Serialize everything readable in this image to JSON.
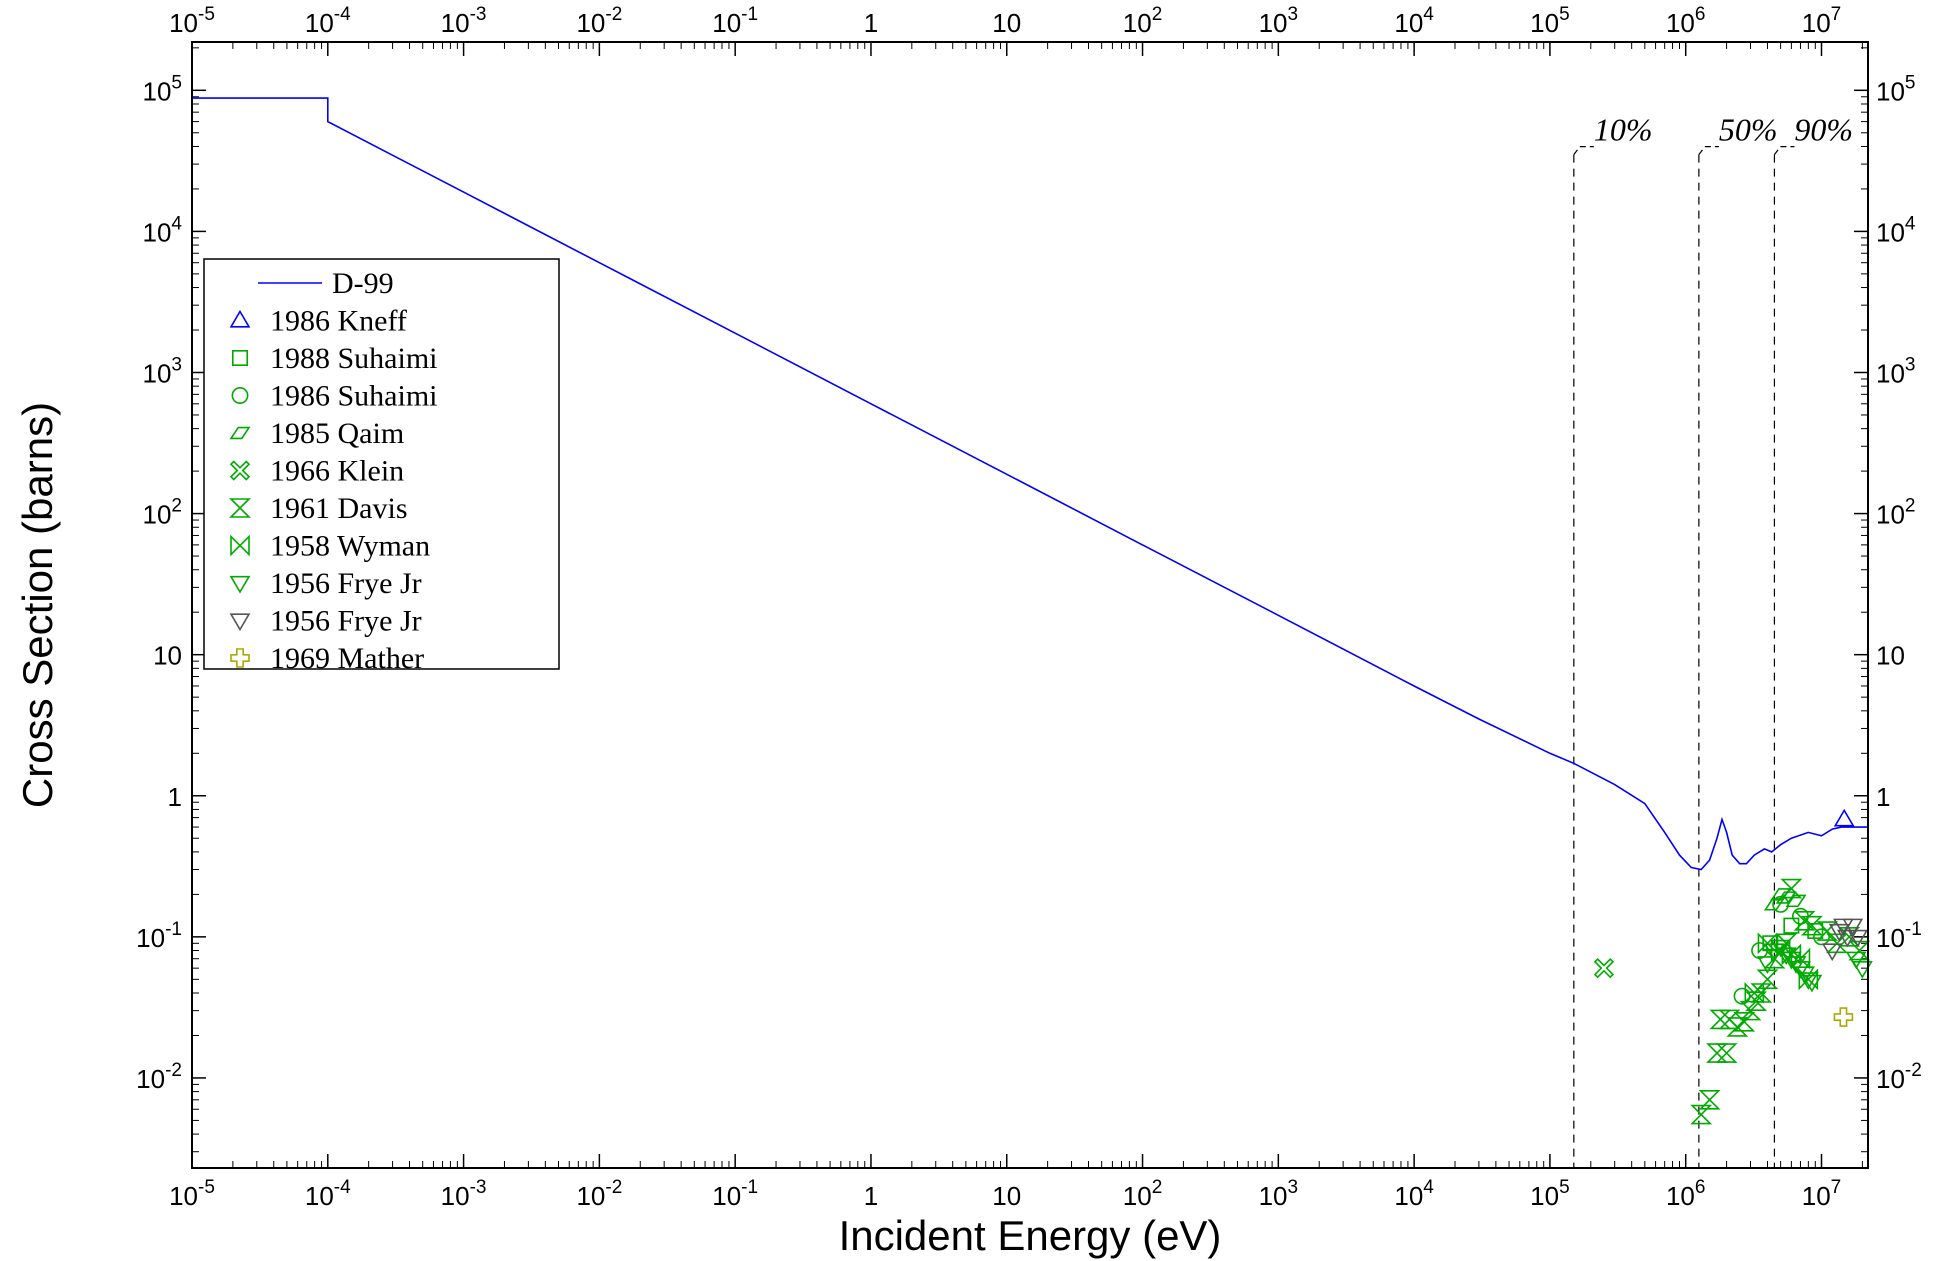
{
  "chart_data": {
    "type": "scatter",
    "title": "",
    "xlabel": "Incident Energy  (eV)",
    "ylabel": "Cross Section  (barns)",
    "xscale": "log",
    "yscale": "log",
    "xlim": [
      1e-05,
      22000000.0
    ],
    "ylim": [
      0.0023,
      220000.0
    ],
    "grid": false,
    "legend_position": "top-left",
    "x_ticks": [
      {
        "value": 1e-05,
        "base": "10",
        "exp": "-5"
      },
      {
        "value": 0.0001,
        "base": "10",
        "exp": "-4"
      },
      {
        "value": 0.001,
        "base": "10",
        "exp": "-3"
      },
      {
        "value": 0.01,
        "base": "10",
        "exp": "-2"
      },
      {
        "value": 0.1,
        "base": "10",
        "exp": "-1"
      },
      {
        "value": 1,
        "base": "1",
        "exp": ""
      },
      {
        "value": 10,
        "base": "10",
        "exp": ""
      },
      {
        "value": 100,
        "base": "10",
        "exp": "2"
      },
      {
        "value": 1000,
        "base": "10",
        "exp": "3"
      },
      {
        "value": 10000,
        "base": "10",
        "exp": "4"
      },
      {
        "value": 100000,
        "base": "10",
        "exp": "5"
      },
      {
        "value": 1000000,
        "base": "10",
        "exp": "6"
      },
      {
        "value": 10000000,
        "base": "10",
        "exp": "7"
      }
    ],
    "y_ticks": [
      {
        "value": 0.01,
        "base": "10",
        "exp": "-2"
      },
      {
        "value": 0.1,
        "base": "10",
        "exp": "-1"
      },
      {
        "value": 1,
        "base": "1",
        "exp": ""
      },
      {
        "value": 10,
        "base": "10",
        "exp": ""
      },
      {
        "value": 100,
        "base": "10",
        "exp": "2"
      },
      {
        "value": 1000,
        "base": "10",
        "exp": "3"
      },
      {
        "value": 10000,
        "base": "10",
        "exp": "4"
      },
      {
        "value": 100000,
        "base": "10",
        "exp": "5"
      }
    ],
    "percentile_markers": [
      {
        "label": "10%",
        "x": 150000.0
      },
      {
        "label": "50%",
        "x": 1250000.0
      },
      {
        "label": "90%",
        "x": 4500000.0
      }
    ],
    "series": [
      {
        "name": "D-99",
        "kind": "line",
        "color": "#0000ff",
        "points": [
          [
            1e-05,
            88000
          ],
          [
            0.0001,
            88000
          ],
          [
            0.0001,
            60000
          ],
          [
            0.001,
            19000
          ],
          [
            0.01,
            6000
          ],
          [
            0.1,
            1900
          ],
          [
            1,
            600
          ],
          [
            10,
            190
          ],
          [
            100,
            60
          ],
          [
            1000,
            19
          ],
          [
            10000,
            6
          ],
          [
            30000,
            3.5
          ],
          [
            100000,
            2
          ],
          [
            150000,
            1.7
          ],
          [
            300000,
            1.2
          ],
          [
            500000,
            0.88
          ],
          [
            700000,
            0.55
          ],
          [
            900000,
            0.38
          ],
          [
            1100000,
            0.31
          ],
          [
            1300000,
            0.3
          ],
          [
            1500000,
            0.35
          ],
          [
            1700000,
            0.5
          ],
          [
            1850000,
            0.68
          ],
          [
            2000000,
            0.55
          ],
          [
            2200000,
            0.38
          ],
          [
            2500000,
            0.33
          ],
          [
            2800000,
            0.33
          ],
          [
            3200000,
            0.38
          ],
          [
            3800000,
            0.42
          ],
          [
            4300000,
            0.4
          ],
          [
            5000000,
            0.45
          ],
          [
            6000000,
            0.5
          ],
          [
            8000000,
            0.55
          ],
          [
            10000000,
            0.52
          ],
          [
            12000000,
            0.58
          ],
          [
            14000000,
            0.6
          ],
          [
            22000000,
            0.6
          ]
        ]
      },
      {
        "name": "1986 Kneff",
        "kind": "marker",
        "marker": "triangle-up",
        "color": "#0000ff",
        "points": [
          [
            14700000,
            0.68
          ]
        ]
      },
      {
        "name": "1988 Suhaimi",
        "kind": "marker",
        "marker": "square",
        "color": "#00aa00",
        "points": [
          [
            4200000,
            0.09
          ],
          [
            6000000,
            0.12
          ],
          [
            9000000,
            0.11
          ]
        ]
      },
      {
        "name": "1986 Suhaimi",
        "kind": "marker",
        "marker": "circle",
        "color": "#00aa00",
        "points": [
          [
            2600000,
            0.038
          ],
          [
            3500000,
            0.08
          ],
          [
            5000000,
            0.17
          ],
          [
            7000000,
            0.14
          ],
          [
            10000000,
            0.1
          ]
        ]
      },
      {
        "name": "1985 Qaim",
        "kind": "marker",
        "marker": "parallelogram",
        "color": "#00aa00",
        "points": [
          [
            4500000,
            0.17
          ],
          [
            5000000,
            0.2
          ],
          [
            5500000,
            0.19
          ],
          [
            6500000,
            0.18
          ]
        ]
      },
      {
        "name": "1966 Klein",
        "kind": "marker",
        "marker": "cross-x",
        "color": "#00aa00",
        "points": [
          [
            250000,
            0.06
          ]
        ]
      },
      {
        "name": "1961 Davis",
        "kind": "marker",
        "marker": "bowtie-v",
        "color": "#00aa00",
        "points": [
          [
            1300000,
            0.0055
          ],
          [
            1500000,
            0.007
          ],
          [
            1700000,
            0.015
          ],
          [
            2000000,
            0.015
          ],
          [
            1800000,
            0.026
          ],
          [
            2100000,
            0.026
          ],
          [
            2400000,
            0.023
          ],
          [
            2700000,
            0.025
          ],
          [
            3000000,
            0.03
          ],
          [
            3300000,
            0.035
          ],
          [
            3600000,
            0.04
          ],
          [
            4000000,
            0.05
          ],
          [
            4500000,
            0.07
          ],
          [
            5500000,
            0.09
          ],
          [
            6000000,
            0.22
          ],
          [
            7500000,
            0.13
          ],
          [
            8500000,
            0.12
          ],
          [
            11000000,
            0.11
          ],
          [
            13000000,
            0.09
          ],
          [
            16000000,
            0.1
          ],
          [
            19000000,
            0.08
          ]
        ]
      },
      {
        "name": "1958 Wyman",
        "kind": "marker",
        "marker": "bowtie-h",
        "color": "#00aa00",
        "points": [
          [
            3200000,
            0.04
          ],
          [
            4000000,
            0.09
          ],
          [
            5000000,
            0.08
          ],
          [
            6000000,
            0.075
          ],
          [
            7000000,
            0.07
          ],
          [
            8000000,
            0.05
          ]
        ]
      },
      {
        "name": "1956 Frye Jr",
        "kind": "marker",
        "marker": "triangle-down",
        "color": "#00aa00",
        "points": [
          [
            4000000,
            0.065
          ],
          [
            4500000,
            0.08
          ],
          [
            5000000,
            0.085
          ],
          [
            5500000,
            0.075
          ],
          [
            6000000,
            0.07
          ],
          [
            6500000,
            0.065
          ],
          [
            7000000,
            0.06
          ],
          [
            7500000,
            0.055
          ],
          [
            8000000,
            0.05
          ],
          [
            8500000,
            0.048
          ],
          [
            18000000,
            0.07
          ],
          [
            20000000,
            0.06
          ]
        ]
      },
      {
        "name": "1956 Frye Jr",
        "kind": "marker",
        "marker": "triangle-down",
        "color": "#555555",
        "points": [
          [
            12000000,
            0.08
          ],
          [
            13500000,
            0.11
          ],
          [
            14500000,
            0.12
          ],
          [
            15500000,
            0.1
          ],
          [
            17000000,
            0.12
          ],
          [
            18500000,
            0.1
          ]
        ]
      },
      {
        "name": "1969 Mather",
        "kind": "marker",
        "marker": "plus",
        "color": "#aaaa00",
        "points": [
          [
            14500000,
            0.027
          ]
        ]
      }
    ]
  }
}
